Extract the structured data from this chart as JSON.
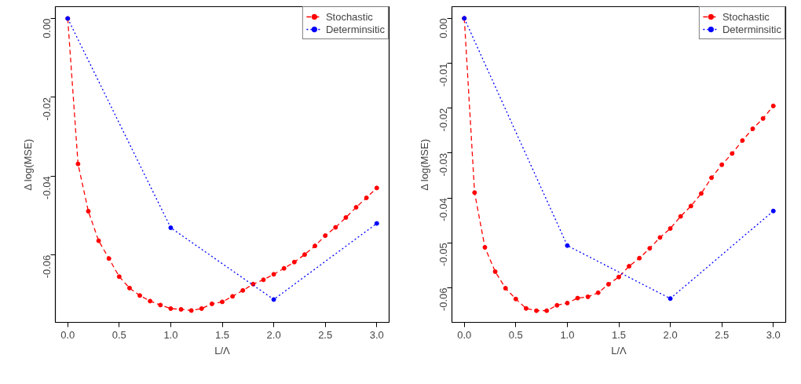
{
  "chart_data": [
    {
      "type": "line",
      "xlabel": "L/Λ",
      "ylabel": "Δ log(MSE)",
      "xlim": [
        -0.12,
        3.12
      ],
      "ylim": [
        -0.0771,
        0.003
      ],
      "xticks": [
        {
          "value": 0,
          "label": "0.0"
        },
        0.5,
        {
          "value": 1,
          "label": "1.0"
        },
        1.5,
        {
          "value": 2,
          "label": "2.0"
        },
        2.5,
        {
          "value": 3,
          "label": "3.0"
        }
      ],
      "yticks": [
        {
          "value": 0,
          "label": "0.00"
        },
        -0.02,
        -0.04,
        -0.06
      ],
      "grid": false,
      "legend": "top right",
      "marker": "circle",
      "x": [
        0,
        0.1,
        0.2,
        0.3,
        0.4,
        0.5,
        0.6,
        0.7,
        0.8,
        0.9,
        1.0,
        1.1,
        1.2,
        1.3,
        1.4,
        1.5,
        1.6,
        1.7,
        1.8,
        1.9,
        2.0,
        2.1,
        2.2,
        2.3,
        2.4,
        2.5,
        2.6,
        2.7,
        2.8,
        2.9,
        3.0
      ],
      "series": [
        {
          "name": "Stochastic",
          "color": "#ff0000",
          "line_style": "dashed",
          "values": [
            0,
            -0.0369,
            -0.0489,
            -0.0564,
            -0.0609,
            -0.0655,
            -0.0684,
            -0.0703,
            -0.0717,
            -0.0727,
            -0.0736,
            -0.0738,
            -0.0741,
            -0.0736,
            -0.0724,
            -0.0719,
            -0.0705,
            -0.069,
            -0.0674,
            -0.0663,
            -0.0649,
            -0.0634,
            -0.0618,
            -0.0599,
            -0.0577,
            -0.0551,
            -0.053,
            -0.0505,
            -0.0479,
            -0.0455,
            -0.043
          ]
        },
        {
          "name": "Determinsitic",
          "color": "#0000ff",
          "line_style": "dotted",
          "x": [
            0,
            1,
            2,
            3
          ],
          "values": [
            0,
            -0.0531,
            -0.0713,
            -0.052
          ]
        }
      ]
    },
    {
      "type": "line",
      "xlabel": "L/Λ",
      "ylabel": "Δ log(MSE)",
      "xlim": [
        -0.12,
        3.12
      ],
      "ylim": [
        -0.0677,
        0.0026
      ],
      "xticks": [
        {
          "value": 0,
          "label": "0.0"
        },
        0.5,
        {
          "value": 1,
          "label": "1.0"
        },
        1.5,
        {
          "value": 2,
          "label": "2.0"
        },
        2.5,
        {
          "value": 3,
          "label": "3.0"
        }
      ],
      "yticks": [
        {
          "value": 0,
          "label": "0.00"
        },
        -0.01,
        -0.02,
        -0.03,
        -0.04,
        -0.05,
        -0.06
      ],
      "grid": false,
      "legend": "top right",
      "marker": "circle",
      "x": [
        0,
        0.1,
        0.2,
        0.3,
        0.4,
        0.5,
        0.6,
        0.7,
        0.8,
        0.9,
        1.0,
        1.1,
        1.2,
        1.3,
        1.4,
        1.5,
        1.6,
        1.7,
        1.8,
        1.9,
        2.0,
        2.1,
        2.2,
        2.3,
        2.4,
        2.5,
        2.6,
        2.7,
        2.8,
        2.9,
        3.0
      ],
      "series": [
        {
          "name": "Stochastic",
          "color": "#ff0000",
          "line_style": "dashed",
          "values": [
            0,
            -0.0388,
            -0.051,
            -0.0564,
            -0.0601,
            -0.0625,
            -0.0646,
            -0.0651,
            -0.0651,
            -0.0639,
            -0.0634,
            -0.0623,
            -0.062,
            -0.0611,
            -0.0592,
            -0.0576,
            -0.0552,
            -0.0534,
            -0.0512,
            -0.0488,
            -0.0468,
            -0.0441,
            -0.0418,
            -0.039,
            -0.0355,
            -0.0326,
            -0.0301,
            -0.0272,
            -0.0246,
            -0.0223,
            -0.0195
          ]
        },
        {
          "name": "Determinsitic",
          "color": "#0000ff",
          "line_style": "dotted",
          "x": [
            1,
            2,
            3,
            0
          ],
          "values": [
            -0.0506,
            -0.0624,
            -0.0429,
            0
          ]
        }
      ]
    }
  ]
}
